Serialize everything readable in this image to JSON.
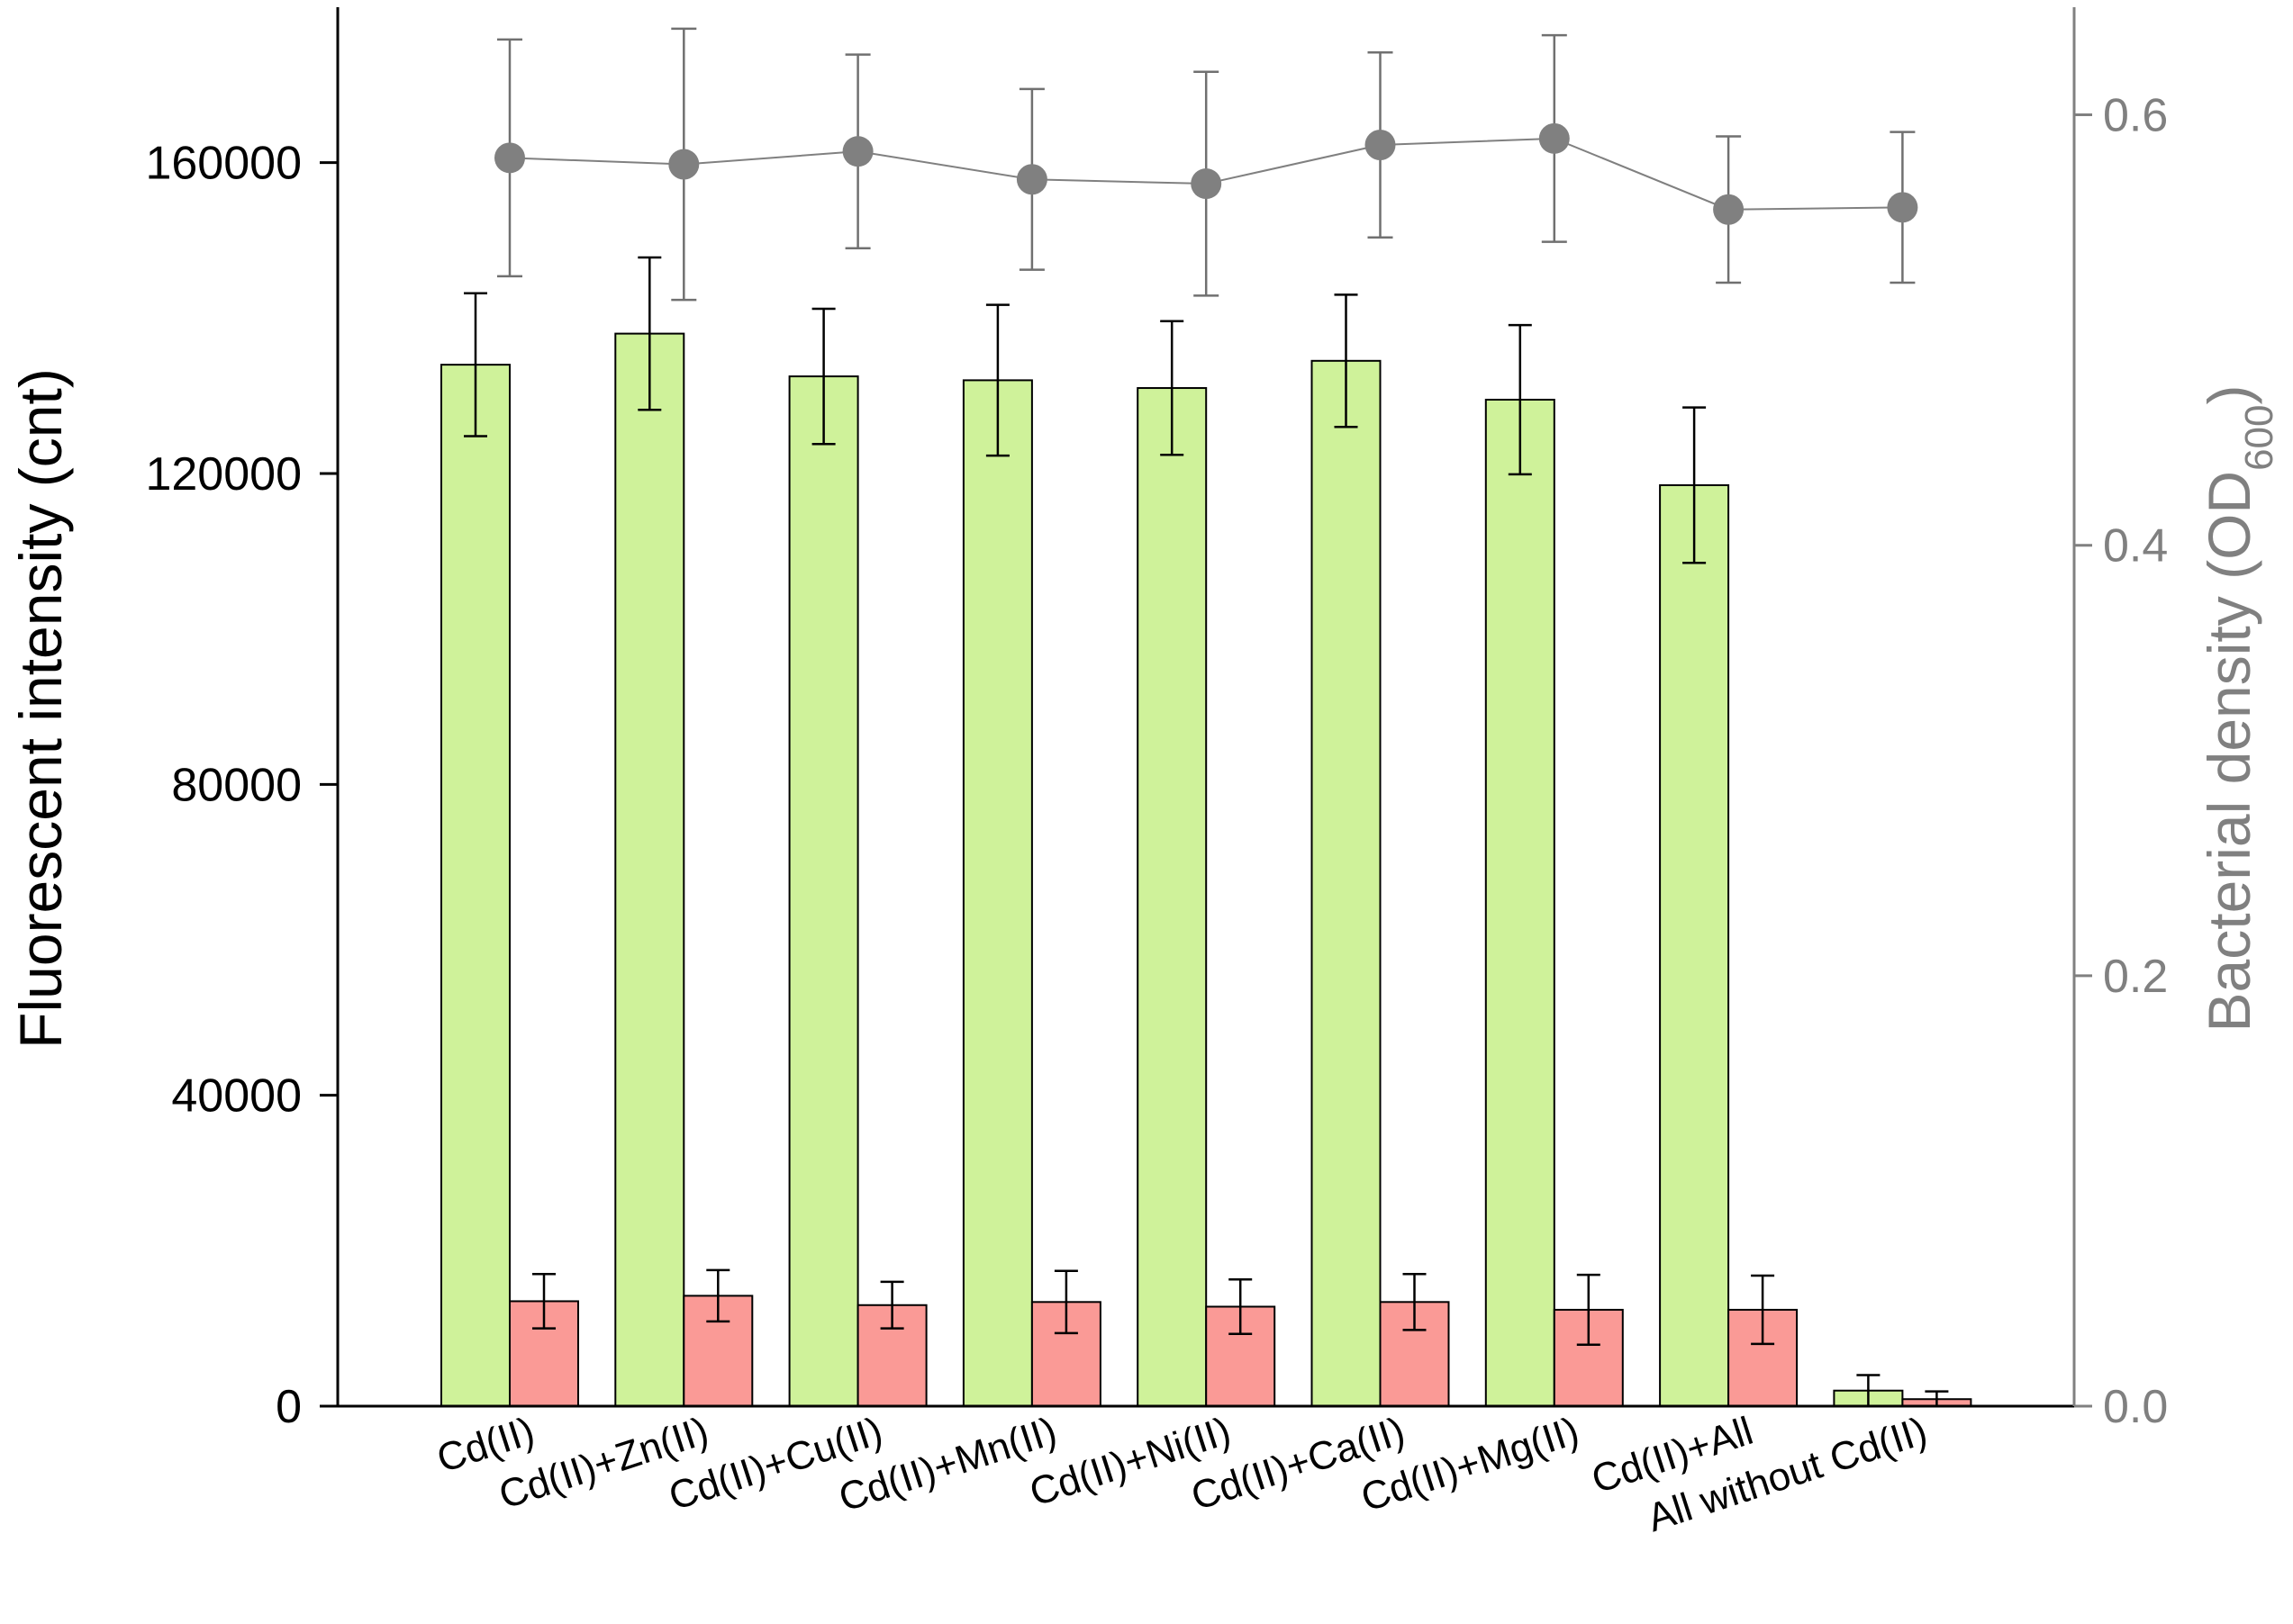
{
  "chart_data": {
    "type": "bar",
    "title": "",
    "categories": [
      "Cd(II)",
      "Cd(II)+Zn(II)",
      "Cd(II)+Cu(II)",
      "Cd(II)+Mn(II)",
      "Cd(II)+Ni(II)",
      "Cd(II)+Ca(II)",
      "Cd(II)+Mg(II)",
      "Cd(II)+All",
      "All without Cd(II)"
    ],
    "ylabel": "Fluorescent intensity (cnt)",
    "ylim": [
      0,
      180000
    ],
    "yticks": [
      0,
      40000,
      80000,
      120000,
      160000
    ],
    "y2label_main": "Bacterial density (OD",
    "y2label_sub": "600",
    "y2label_end": ")",
    "y2lim": [
      0,
      0.65
    ],
    "y2ticks": [
      "0.0",
      "0.2",
      "0.4",
      "0.6"
    ],
    "y2tick_values": [
      0,
      0.2,
      0.4,
      0.6
    ],
    "series": [
      {
        "type": "bar",
        "axis": "left",
        "color": "#cff29a",
        "values": [
          134000,
          138000,
          132500,
          132000,
          131000,
          134500,
          129500,
          118500,
          2000
        ],
        "errors": [
          9200,
          9800,
          8700,
          9700,
          8600,
          8500,
          9600,
          10000,
          2000
        ]
      },
      {
        "type": "bar",
        "axis": "left",
        "color": "#fa9a96",
        "values": [
          13500,
          14200,
          13000,
          13400,
          12800,
          13400,
          12400,
          12400,
          900
        ],
        "errors": [
          3500,
          3300,
          3000,
          4000,
          3500,
          3600,
          4500,
          4400,
          1000
        ]
      },
      {
        "type": "line",
        "axis": "right",
        "color": "#808080",
        "values": [
          0.58,
          0.577,
          0.583,
          0.57,
          0.568,
          0.586,
          0.589,
          0.556,
          0.557
        ],
        "errors": [
          0.055,
          0.063,
          0.045,
          0.042,
          0.052,
          0.043,
          0.048,
          0.034,
          0.035
        ]
      }
    ]
  }
}
